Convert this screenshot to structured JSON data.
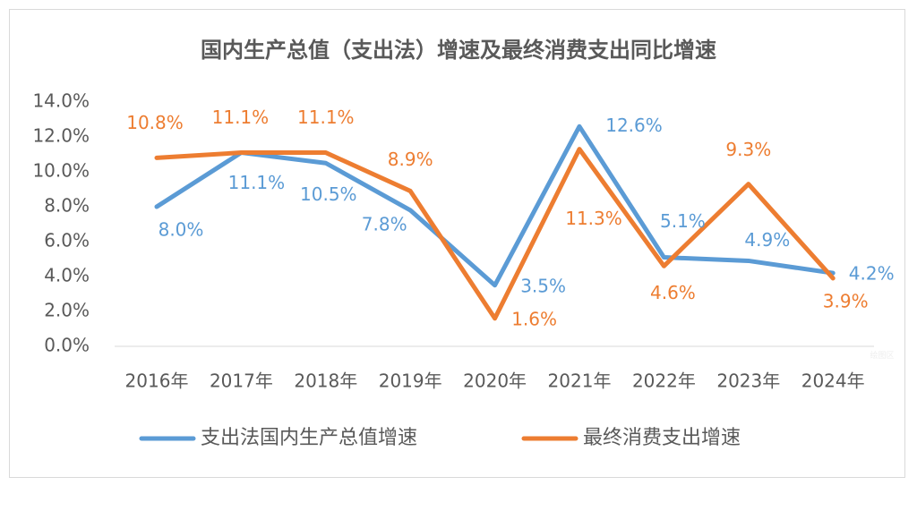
{
  "chart_data": {
    "type": "line",
    "title": "国内生产总值（支出法）增速及最终消费支出同比增速",
    "categories": [
      "2016年",
      "2017年",
      "2018年",
      "2019年",
      "2020年",
      "2021年",
      "2022年",
      "2023年",
      "2024年"
    ],
    "ylim": [
      0,
      14
    ],
    "yticks": [
      "0.0%",
      "2.0%",
      "4.0%",
      "6.0%",
      "8.0%",
      "10.0%",
      "12.0%",
      "14.0%"
    ],
    "grid": false,
    "legend_position": "bottom",
    "series": [
      {
        "name": "支出法国内生产总值增速",
        "color": "#5B9BD5",
        "values": [
          8.0,
          11.1,
          10.5,
          7.8,
          3.5,
          12.6,
          5.1,
          4.9,
          4.2
        ]
      },
      {
        "name": "最终消费支出增速",
        "color": "#ED7D31",
        "values": [
          10.8,
          11.1,
          11.1,
          8.9,
          1.6,
          11.3,
          4.6,
          9.3,
          3.9
        ]
      }
    ],
    "watermark": "绘图区"
  }
}
